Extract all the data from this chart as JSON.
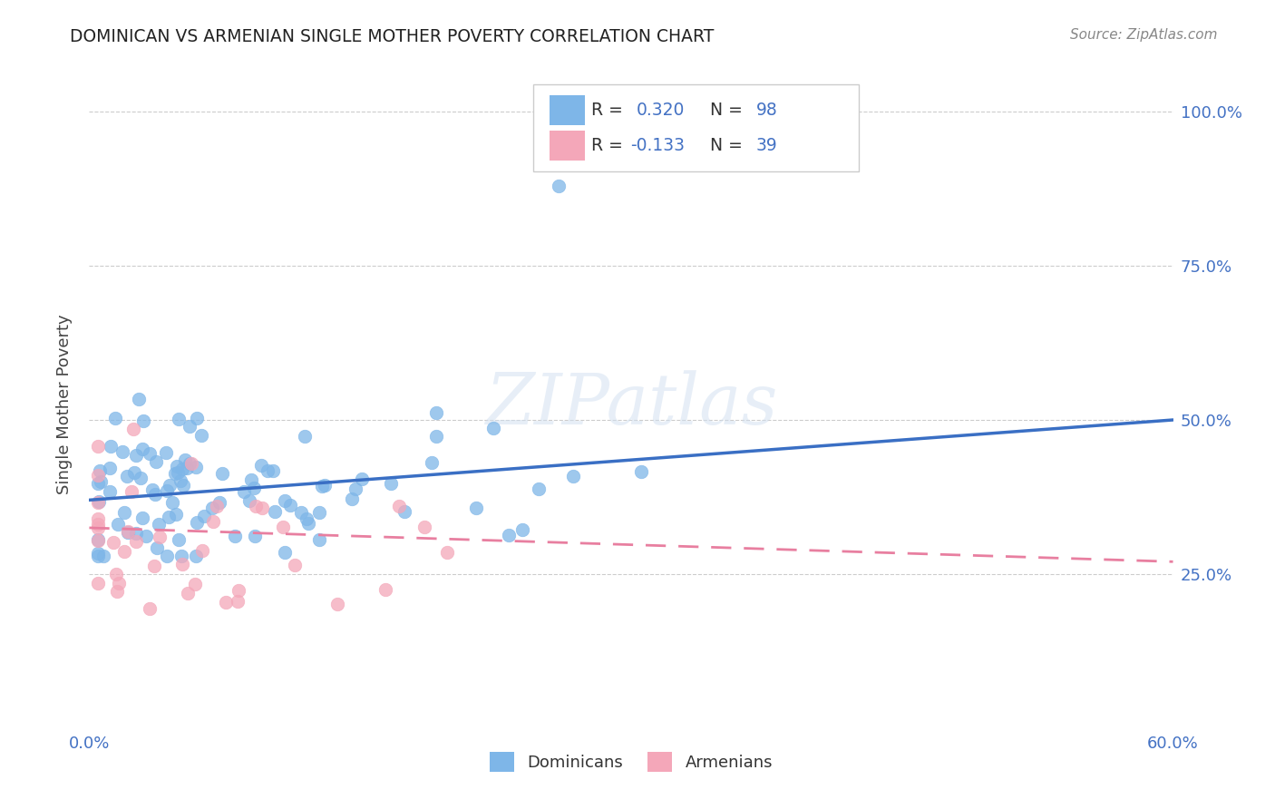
{
  "title": "DOMINICAN VS ARMENIAN SINGLE MOTHER POVERTY CORRELATION CHART",
  "source": "Source: ZipAtlas.com",
  "ylabel": "Single Mother Poverty",
  "xlim": [
    0.0,
    0.6
  ],
  "ylim": [
    0.0,
    1.05
  ],
  "x_ticks": [
    0.0,
    0.1,
    0.2,
    0.3,
    0.4,
    0.5,
    0.6
  ],
  "x_tick_labels": [
    "0.0%",
    "",
    "",
    "",
    "",
    "",
    "60.0%"
  ],
  "y_ticks_right": [
    0.25,
    0.5,
    0.75,
    1.0
  ],
  "y_tick_labels_right": [
    "25.0%",
    "50.0%",
    "75.0%",
    "100.0%"
  ],
  "dominican_color": "#7eb6e8",
  "armenian_color": "#f4a7b9",
  "dominican_line_color": "#3a6fc4",
  "armenian_line_color": "#e87fa0",
  "background_color": "#ffffff",
  "grid_color": "#cccccc",
  "watermark": "ZIPatlas",
  "R_dominican": "0.320",
  "N_dominican": "98",
  "R_armenian": "-0.133",
  "N_armenian": "39",
  "dom_line_x0": 0.0,
  "dom_line_y0": 0.37,
  "dom_line_x1": 0.6,
  "dom_line_y1": 0.5,
  "arm_line_x0": 0.0,
  "arm_line_y0": 0.325,
  "arm_line_x1": 0.6,
  "arm_line_y1": 0.27,
  "legend_label1": "Dominicans",
  "legend_label2": "Armenians"
}
